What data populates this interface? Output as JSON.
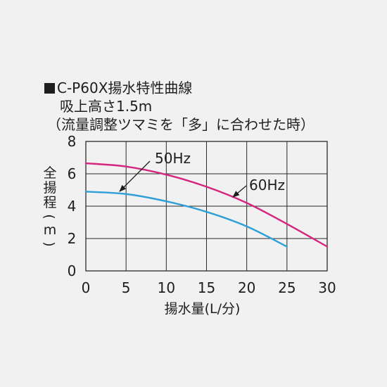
{
  "header": {
    "line1": "C-P60X揚水特性曲線",
    "line2": "吸上高さ1.5m",
    "line3": "（流量調整ツマミを「多」に合わせた時）"
  },
  "chart_data": {
    "type": "line",
    "title": "C-P60X揚水特性曲線",
    "subtitle": "吸上高さ1.5m （流量調整ツマミを「多」に合わせた時）",
    "xlabel": "揚水量(L/分)",
    "ylabel": "全揚程(m)",
    "xlim": [
      0,
      30
    ],
    "ylim": [
      0,
      8
    ],
    "x_ticks": [
      "0",
      "5",
      "10",
      "15",
      "20",
      "25",
      "30"
    ],
    "y_ticks": [
      "0",
      "2",
      "4",
      "6",
      "8"
    ],
    "grid": true,
    "series": [
      {
        "name": "50Hz",
        "color": "#2f9fd8",
        "x": [
          0,
          5,
          10,
          15,
          20,
          25
        ],
        "y": [
          4.9,
          4.75,
          4.3,
          3.65,
          2.75,
          1.5
        ]
      },
      {
        "name": "60Hz",
        "color": "#d6257e",
        "x": [
          0,
          5,
          10,
          15,
          20,
          25,
          30
        ],
        "y": [
          6.65,
          6.45,
          5.95,
          5.2,
          4.2,
          2.9,
          1.5
        ]
      }
    ]
  }
}
